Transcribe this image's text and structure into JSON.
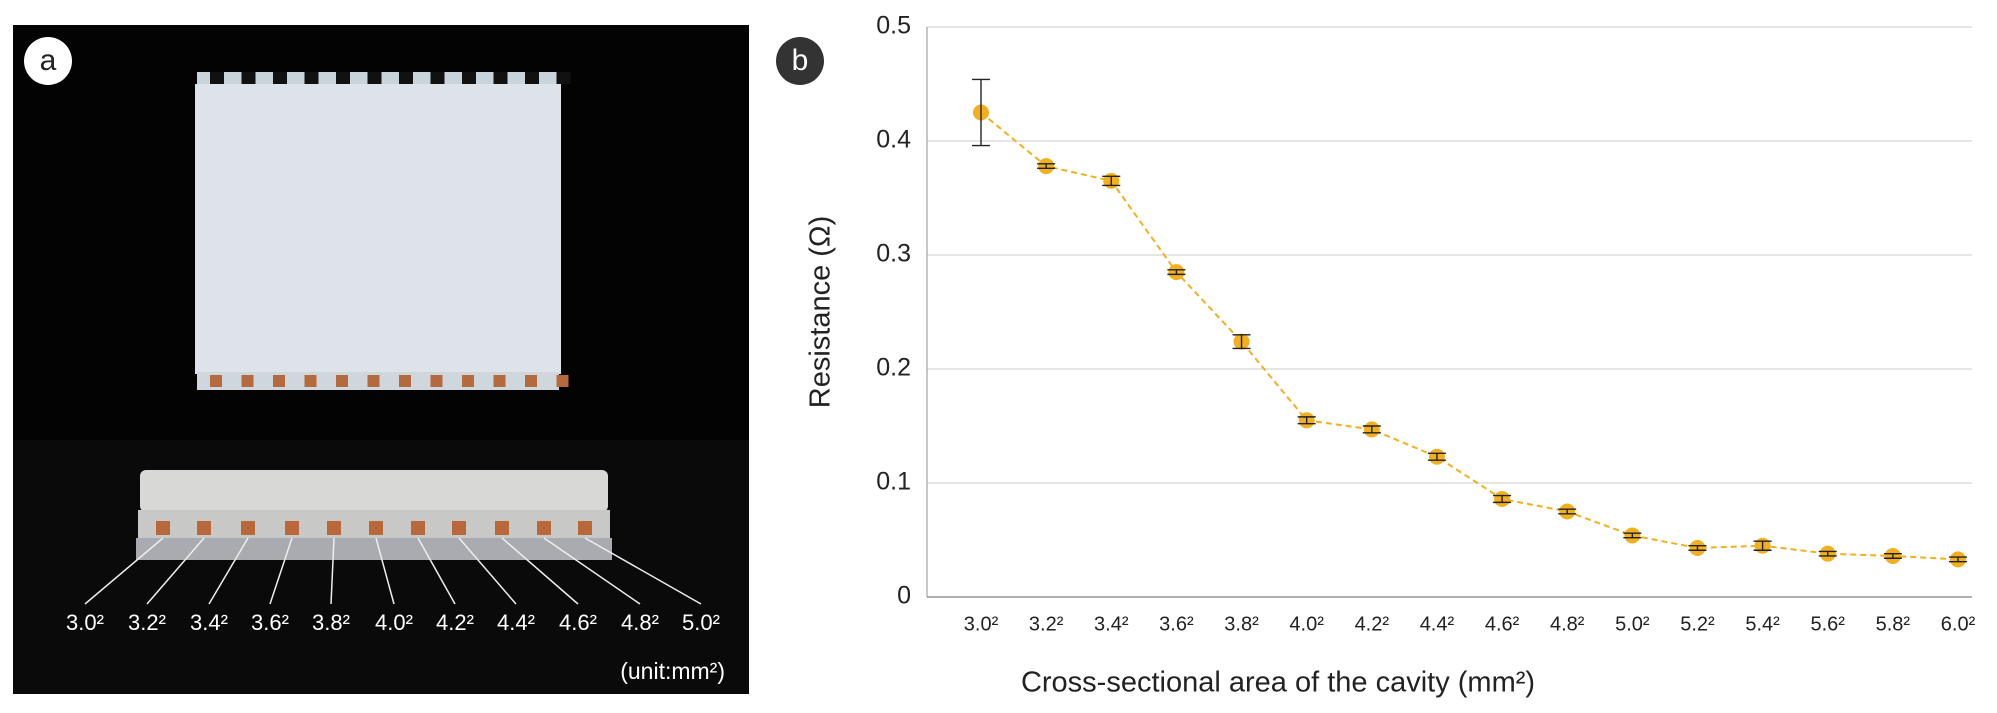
{
  "panel_a": {
    "label": "a",
    "cavity_labels": [
      "3.0²",
      "3.2²",
      "3.4²",
      "3.6²",
      "3.8²",
      "4.0²",
      "4.2²",
      "4.4²",
      "4.6²",
      "4.8²",
      "5.0²"
    ],
    "unit": "(unit:mm²)"
  },
  "chart_data": {
    "type": "errorbar-line",
    "panel_label": "b",
    "x_label": "Cross-sectional area of the cavity (mm²)",
    "y_label": "Resistance (Ω)",
    "categories": [
      "3.0²",
      "3.2²",
      "3.4²",
      "3.6²",
      "3.8²",
      "4.0²",
      "4.2²",
      "4.4²",
      "4.6²",
      "4.8²",
      "5.0²",
      "5.2²",
      "5.4²",
      "5.6²",
      "5.8²",
      "6.0²"
    ],
    "values": [
      0.425,
      0.378,
      0.365,
      0.285,
      0.224,
      0.155,
      0.147,
      0.123,
      0.086,
      0.075,
      0.054,
      0.043,
      0.045,
      0.038,
      0.036,
      0.033
    ],
    "errors": [
      0.029,
      0.002,
      0.004,
      0.002,
      0.006,
      0.003,
      0.003,
      0.003,
      0.003,
      0.002,
      0.002,
      0.002,
      0.004,
      0.002,
      0.002,
      0.002
    ],
    "color": "#f2b01e",
    "ylim": [
      0,
      0.5
    ],
    "yticks": [
      0,
      0.1,
      0.2,
      0.3,
      0.4,
      0.5
    ],
    "grid": true
  }
}
